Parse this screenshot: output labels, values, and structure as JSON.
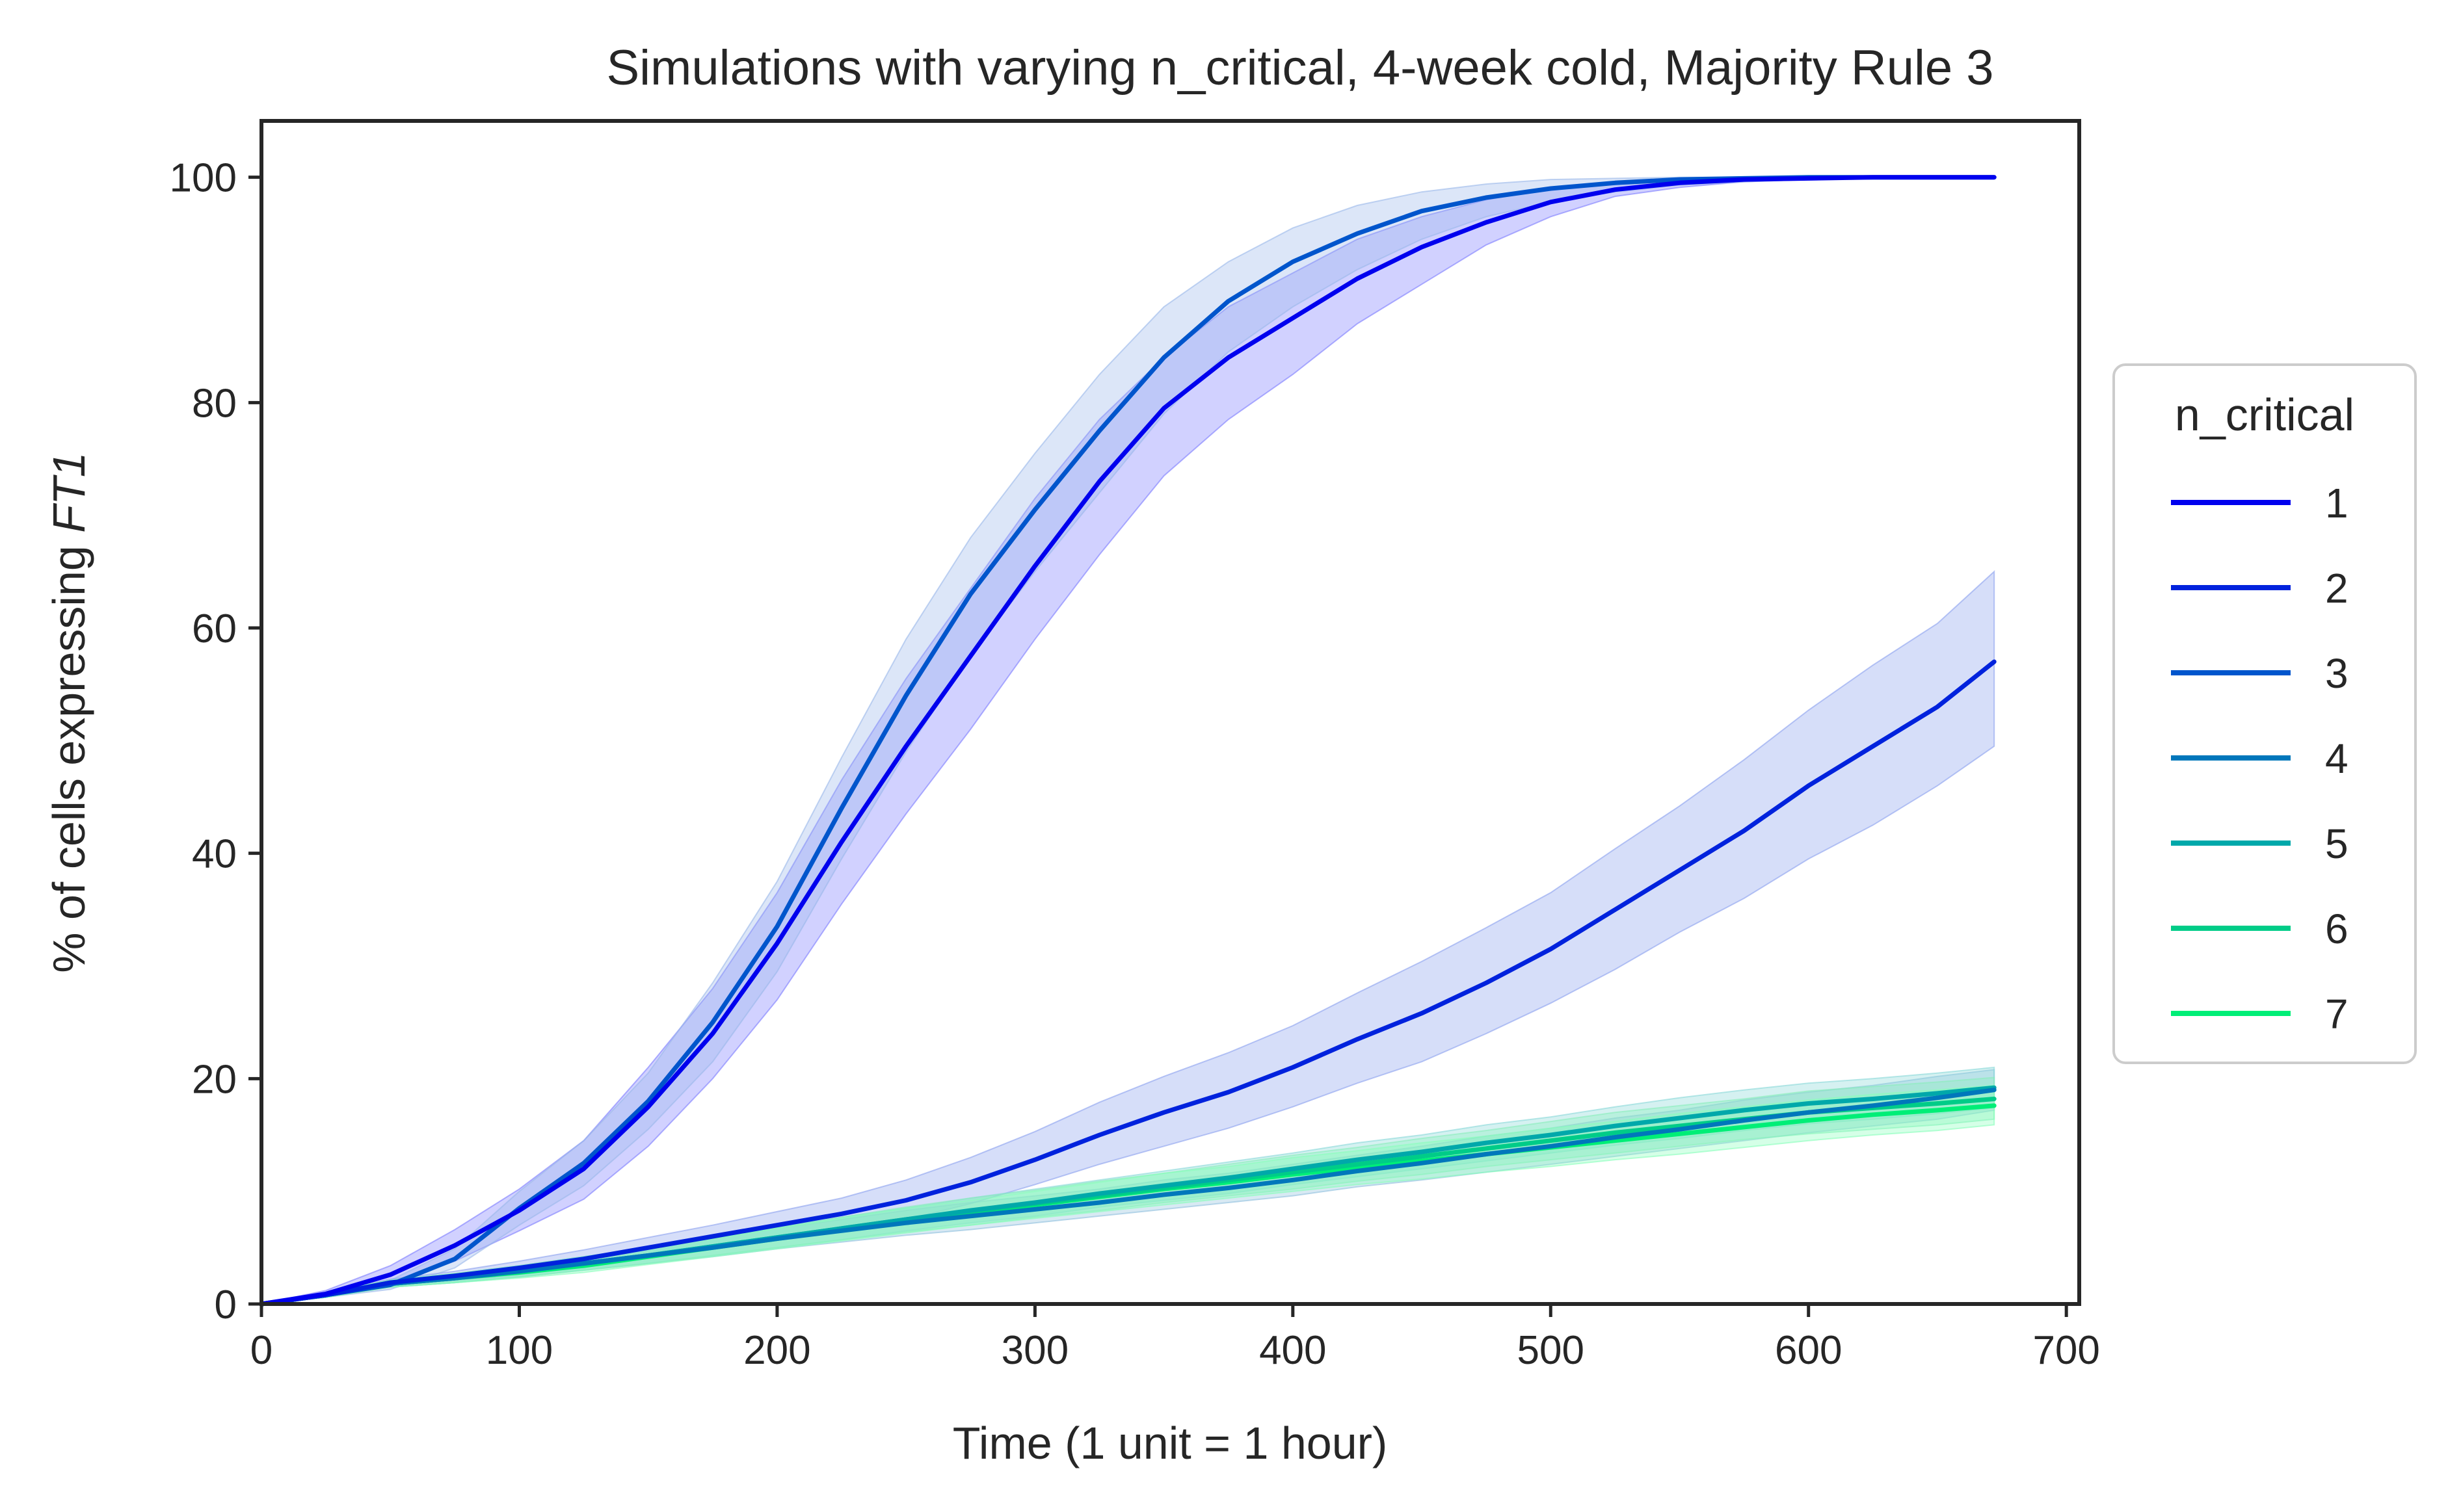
{
  "chart_data": {
    "type": "line",
    "title": "Simulations with varying n_critical, 4-week cold, Majority Rule 3",
    "xlabel": "Time (1 unit = 1 hour)",
    "ylabel_prefix": "% of cells expressing ",
    "ylabel_italic": "FT1",
    "xlim": [
      0,
      705
    ],
    "ylim": [
      0,
      105
    ],
    "xticks": [
      0,
      100,
      200,
      300,
      400,
      500,
      600,
      700
    ],
    "yticks": [
      0,
      20,
      40,
      60,
      80,
      100
    ],
    "grid": false,
    "legend": {
      "title": "n_critical",
      "placement": "center-right-outside"
    },
    "x": [
      0,
      25,
      50,
      75,
      100,
      125,
      150,
      175,
      200,
      225,
      250,
      275,
      300,
      325,
      350,
      375,
      400,
      425,
      450,
      475,
      500,
      525,
      550,
      575,
      600,
      625,
      650,
      672
    ],
    "series": [
      {
        "name": "1",
        "color": "#0000ee",
        "band_color": "#7b7bff",
        "values": [
          0,
          0.9,
          2.6,
          5.2,
          8.3,
          12.0,
          17.5,
          24.0,
          32.0,
          41.0,
          49.5,
          57.5,
          65.5,
          73.0,
          79.5,
          84.0,
          87.5,
          91.0,
          93.8,
          96.0,
          97.8,
          98.9,
          99.5,
          99.8,
          99.9,
          100,
          100,
          100
        ],
        "lower": [
          0,
          0.6,
          1.8,
          3.8,
          6.5,
          9.3,
          14.0,
          20.0,
          27.0,
          35.5,
          43.5,
          51.0,
          59.0,
          66.5,
          73.5,
          78.5,
          82.5,
          87.0,
          90.5,
          94.0,
          96.5,
          98.3,
          99.1,
          99.6,
          99.8,
          99.9,
          100,
          100
        ],
        "upper": [
          0,
          1.2,
          3.4,
          6.6,
          10.2,
          14.5,
          21.0,
          28.0,
          36.5,
          46.5,
          55.5,
          63.5,
          71.5,
          78.5,
          84.0,
          88.5,
          91.5,
          94.5,
          96.5,
          98.0,
          99.0,
          99.6,
          99.9,
          100,
          100,
          100,
          100,
          100
        ]
      },
      {
        "name": "2",
        "color": "#0022dd",
        "band_color": "#8aa0ee",
        "values": [
          0,
          0.8,
          1.9,
          2.5,
          3.2,
          4.0,
          5.0,
          6.0,
          7.0,
          8.0,
          9.2,
          10.8,
          12.8,
          15.0,
          17.0,
          18.8,
          21.0,
          23.5,
          25.8,
          28.5,
          31.5,
          35.0,
          38.5,
          42.0,
          46.0,
          49.5,
          53.0,
          57.0
        ],
        "lower": [
          0,
          0.6,
          1.6,
          2.1,
          2.6,
          3.3,
          4.2,
          5.0,
          5.8,
          6.6,
          7.5,
          8.9,
          10.6,
          12.4,
          14.0,
          15.6,
          17.5,
          19.6,
          21.5,
          24.0,
          26.7,
          29.7,
          33.0,
          36.0,
          39.5,
          42.5,
          46.0,
          49.5
        ],
        "upper": [
          0,
          1.0,
          2.2,
          2.9,
          3.8,
          4.8,
          5.9,
          7.0,
          8.2,
          9.4,
          11.0,
          13.0,
          15.3,
          17.9,
          20.2,
          22.3,
          24.7,
          27.6,
          30.4,
          33.4,
          36.5,
          40.4,
          44.2,
          48.3,
          52.7,
          56.7,
          60.4,
          65.0
        ]
      },
      {
        "name": "3",
        "color": "#0055cc",
        "band_color": "#9ab8ea",
        "values": [
          0,
          0.8,
          1.7,
          4.0,
          8.5,
          12.5,
          18.0,
          25.0,
          33.5,
          44.0,
          54.0,
          63.0,
          70.5,
          77.5,
          84.0,
          89.0,
          92.5,
          95.0,
          97.0,
          98.2,
          99.0,
          99.5,
          99.8,
          99.9,
          100,
          100,
          100,
          100
        ],
        "lower": [
          0,
          0.6,
          1.3,
          3.2,
          7.0,
          10.5,
          15.5,
          21.5,
          29.5,
          39.5,
          49.0,
          57.5,
          65.0,
          72.0,
          79.0,
          84.5,
          88.5,
          91.8,
          94.5,
          96.5,
          97.8,
          98.7,
          99.3,
          99.6,
          99.8,
          99.9,
          100,
          100
        ],
        "upper": [
          0,
          1.0,
          2.1,
          4.9,
          10.0,
          14.5,
          20.5,
          28.5,
          37.5,
          48.5,
          59.0,
          68.0,
          75.5,
          82.5,
          88.5,
          92.5,
          95.5,
          97.5,
          98.7,
          99.4,
          99.8,
          99.9,
          100,
          100,
          100,
          100,
          100,
          100
        ]
      },
      {
        "name": "4",
        "color": "#0077bb",
        "band_color": "#8fc0dd",
        "values": [
          0,
          0.8,
          1.8,
          2.3,
          2.9,
          3.6,
          4.3,
          5.0,
          5.8,
          6.5,
          7.2,
          7.8,
          8.4,
          9.0,
          9.7,
          10.3,
          11.0,
          11.8,
          12.5,
          13.3,
          14.0,
          14.8,
          15.5,
          16.3,
          17.0,
          17.6,
          18.3,
          19.0
        ],
        "lower": [
          0,
          0.6,
          1.5,
          1.9,
          2.4,
          3.0,
          3.6,
          4.2,
          4.9,
          5.5,
          6.1,
          6.6,
          7.2,
          7.8,
          8.4,
          9.0,
          9.6,
          10.4,
          11.0,
          11.7,
          12.4,
          13.1,
          13.8,
          14.5,
          15.2,
          15.8,
          16.4,
          17.2
        ],
        "upper": [
          0,
          1.0,
          2.1,
          2.7,
          3.4,
          4.2,
          5.0,
          5.8,
          6.7,
          7.5,
          8.3,
          9.0,
          9.6,
          10.2,
          11.0,
          11.6,
          12.4,
          13.2,
          14.0,
          14.9,
          15.6,
          16.5,
          17.2,
          18.1,
          18.8,
          19.4,
          20.2,
          20.8
        ]
      },
      {
        "name": "5",
        "color": "#00a8aa",
        "band_color": "#88d8d8",
        "values": [
          0,
          0.8,
          1.8,
          2.3,
          2.9,
          3.6,
          4.3,
          5.1,
          5.9,
          6.7,
          7.5,
          8.3,
          9.0,
          9.8,
          10.5,
          11.2,
          12.0,
          12.8,
          13.5,
          14.3,
          15.0,
          15.8,
          16.5,
          17.2,
          17.8,
          18.2,
          18.7,
          19.2
        ],
        "lower": [
          0,
          0.6,
          1.5,
          1.9,
          2.4,
          3.0,
          3.6,
          4.3,
          5.0,
          5.7,
          6.5,
          7.2,
          7.8,
          8.6,
          9.2,
          9.8,
          10.6,
          11.3,
          12.0,
          12.7,
          13.4,
          14.1,
          14.7,
          15.4,
          16.0,
          16.4,
          16.9,
          17.4
        ],
        "upper": [
          0,
          1.0,
          2.1,
          2.7,
          3.4,
          4.2,
          5.0,
          5.9,
          6.8,
          7.7,
          8.5,
          9.4,
          10.2,
          11.0,
          11.8,
          12.6,
          13.4,
          14.3,
          15.0,
          15.9,
          16.6,
          17.5,
          18.3,
          19.0,
          19.6,
          20.0,
          20.5,
          21.0
        ]
      },
      {
        "name": "6",
        "color": "#00cc88",
        "band_color": "#88eebb",
        "values": [
          0,
          0.8,
          1.8,
          2.3,
          2.9,
          3.6,
          4.3,
          5.1,
          5.9,
          6.7,
          7.5,
          8.2,
          8.9,
          9.6,
          10.3,
          11.0,
          11.7,
          12.4,
          13.1,
          13.8,
          14.5,
          15.2,
          15.8,
          16.4,
          17.0,
          17.4,
          17.8,
          18.2
        ],
        "lower": [
          0,
          0.6,
          1.5,
          1.9,
          2.4,
          3.0,
          3.6,
          4.3,
          5.0,
          5.7,
          6.4,
          7.0,
          7.7,
          8.3,
          9.0,
          9.6,
          10.2,
          10.9,
          11.5,
          12.2,
          12.8,
          13.4,
          14.0,
          14.6,
          15.1,
          15.5,
          15.9,
          16.4
        ],
        "upper": [
          0,
          1.0,
          2.1,
          2.7,
          3.4,
          4.2,
          5.0,
          5.9,
          6.8,
          7.7,
          8.6,
          9.4,
          10.1,
          10.9,
          11.6,
          12.4,
          13.2,
          13.9,
          14.7,
          15.4,
          16.2,
          17.0,
          17.6,
          18.2,
          18.9,
          19.3,
          19.7,
          20.1
        ]
      },
      {
        "name": "7",
        "color": "#00ee77",
        "band_color": "#88ffbb",
        "values": [
          0,
          0.8,
          1.8,
          2.3,
          2.8,
          3.4,
          4.2,
          5.0,
          5.8,
          6.6,
          7.4,
          8.1,
          8.8,
          9.5,
          10.2,
          10.8,
          11.5,
          12.1,
          12.7,
          13.3,
          13.9,
          14.5,
          15.1,
          15.7,
          16.3,
          16.8,
          17.2,
          17.6
        ],
        "lower": [
          0,
          0.6,
          1.5,
          1.9,
          2.3,
          2.8,
          3.5,
          4.2,
          4.9,
          5.6,
          6.3,
          7.0,
          7.6,
          8.2,
          8.8,
          9.4,
          10.0,
          10.6,
          11.1,
          11.7,
          12.2,
          12.8,
          13.3,
          13.9,
          14.5,
          15.0,
          15.4,
          15.9
        ],
        "upper": [
          0,
          1.0,
          2.1,
          2.7,
          3.3,
          4.0,
          4.9,
          5.8,
          6.7,
          7.6,
          8.5,
          9.2,
          10.0,
          10.8,
          11.6,
          12.2,
          13.0,
          13.6,
          14.3,
          14.9,
          15.6,
          16.2,
          16.9,
          17.5,
          18.1,
          18.6,
          19.0,
          19.4
        ]
      }
    ]
  }
}
